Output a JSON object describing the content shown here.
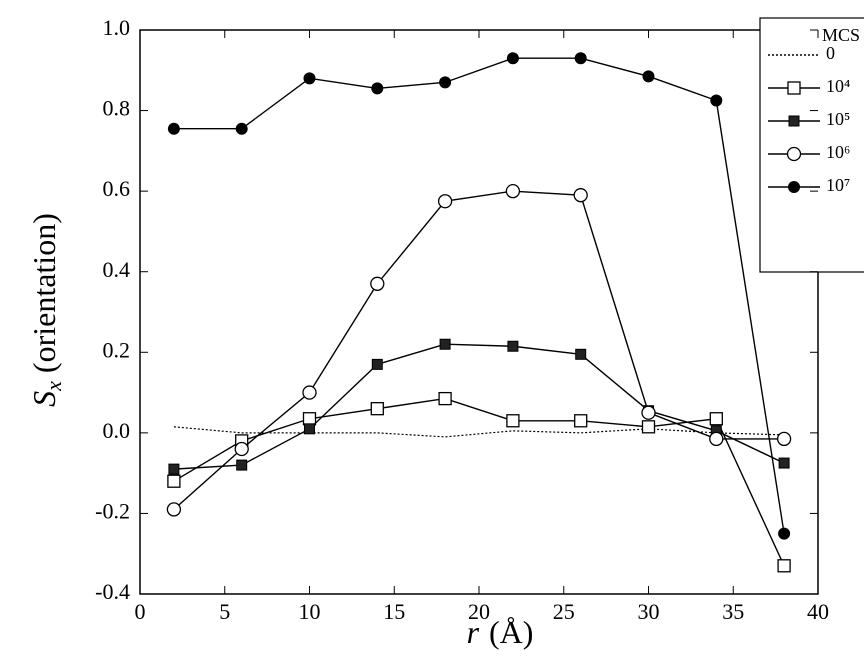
{
  "chart_data": {
    "type": "line",
    "ylabel_symbol": "S",
    "ylabel_subscript": "x",
    "ylabel_text": "(orientation)",
    "xlabel_symbol": "r",
    "xlabel_unit": "(Å)",
    "legend_title": "MCS",
    "legend_position": "upper right",
    "x": [
      2,
      6,
      10,
      14,
      18,
      22,
      26,
      30,
      34,
      38
    ],
    "series": [
      {
        "name": "0",
        "color": "#000000",
        "line_style": "dotted",
        "marker": "none",
        "values": [
          0.015,
          0.0,
          0.0,
          0.0,
          -0.01,
          0.005,
          0.0,
          0.01,
          0.0,
          -0.005
        ]
      },
      {
        "name": "10⁴",
        "color": "#000000",
        "line_style": "solid",
        "marker": "open-square",
        "values": [
          -0.12,
          -0.02,
          0.035,
          0.06,
          0.085,
          0.03,
          0.03,
          0.015,
          0.035,
          -0.33
        ]
      },
      {
        "name": "10⁵",
        "color": "#000000",
        "line_style": "solid",
        "marker": "filled-square",
        "values": [
          -0.09,
          -0.08,
          0.01,
          0.17,
          0.22,
          0.215,
          0.195,
          0.055,
          0.005,
          -0.075
        ]
      },
      {
        "name": "10⁶",
        "color": "#000000",
        "line_style": "solid",
        "marker": "open-circle",
        "values": [
          -0.19,
          -0.04,
          0.1,
          0.37,
          0.575,
          0.6,
          0.59,
          0.05,
          -0.015,
          -0.015
        ]
      },
      {
        "name": "10⁷",
        "color": "#000000",
        "line_style": "solid",
        "marker": "filled-circle",
        "values": [
          0.755,
          0.755,
          0.88,
          0.855,
          0.87,
          0.93,
          0.93,
          0.885,
          0.825,
          -0.25
        ]
      }
    ],
    "xlim": [
      0,
      40
    ],
    "xticks": [
      0,
      5,
      10,
      15,
      20,
      25,
      30,
      35,
      40
    ],
    "ylim": [
      -0.4,
      1.0
    ],
    "yticks": [
      -0.4,
      -0.2,
      {
        "value": 0,
        "label": "0.0"
      },
      0.2,
      0.4,
      0.6,
      0.8,
      {
        "value": 1,
        "label": "1.0"
      }
    ],
    "grid": false
  }
}
